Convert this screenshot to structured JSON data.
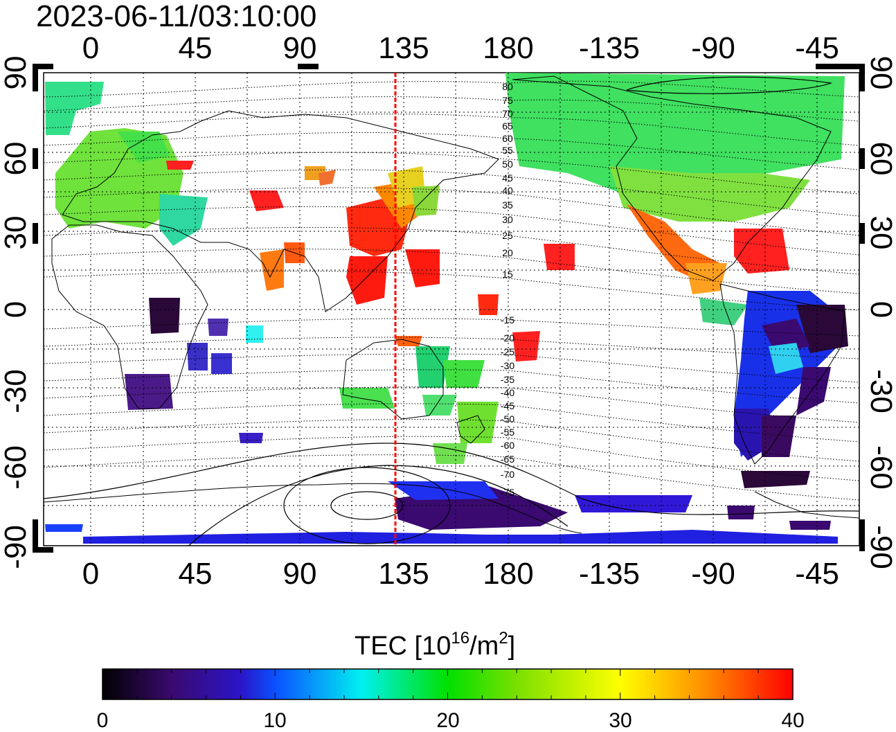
{
  "timestamp": "2023-06-11/03:10:00",
  "map": {
    "top_lon_ticks": [
      "0",
      "45",
      "90",
      "135",
      "180",
      "-135",
      "-90",
      "-45"
    ],
    "bottom_lon_ticks": [
      "0",
      "45",
      "90",
      "135",
      "180",
      "-135",
      "-90",
      "-45"
    ],
    "left_lat_ticks": [
      "90",
      "60",
      "30",
      "0",
      "-30",
      "-60",
      "-90"
    ],
    "right_lat_ticks": [
      "90",
      "60",
      "30",
      "0",
      "-30",
      "-60",
      "-90"
    ],
    "lon_values": [
      0,
      45,
      90,
      135,
      180,
      -135,
      -90,
      -45
    ],
    "lat_values": [
      90,
      60,
      30,
      0,
      -30,
      -60,
      -90
    ],
    "dip_contour_labels": [
      "80",
      "75",
      "70",
      "65",
      "60",
      "55",
      "50",
      "45",
      "40",
      "35",
      "30",
      "25",
      "20",
      "15",
      "-15",
      "-20",
      "-25",
      "-30",
      "-35",
      "-40",
      "-45",
      "-50",
      "-55",
      "-60",
      "-65",
      "-70",
      "-75"
    ],
    "noon_meridian_lon": 132,
    "noon_meridian_color": "#ff0000"
  },
  "colorbar": {
    "title": "TEC  [10",
    "title_sup": "16",
    "title_mid": "/m",
    "title_sup2": "2",
    "title_end": "]",
    "tick_labels": [
      "0",
      "10",
      "20",
      "30",
      "40"
    ],
    "tick_values": [
      0,
      10,
      20,
      30,
      40
    ],
    "min": 0,
    "max": 40,
    "colors": [
      "#000000",
      "#3a0a6e",
      "#2b14c8",
      "#0a50ff",
      "#00f0f0",
      "#00e000",
      "#7ae000",
      "#ffff00",
      "#ff9000",
      "#ff0000"
    ]
  }
}
